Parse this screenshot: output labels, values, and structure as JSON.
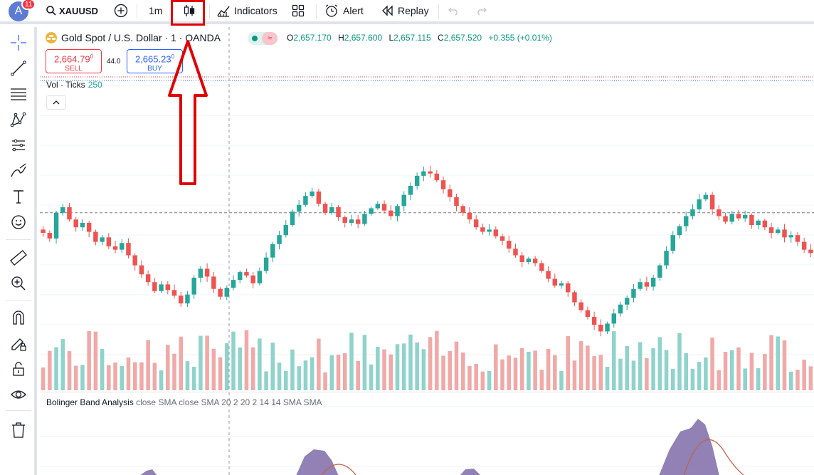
{
  "toolbar": {
    "notification_count": "11",
    "avatar_letter": "A",
    "symbol": "XAUUSD",
    "interval": "1m",
    "indicators_label": "Indicators",
    "alert_label": "Alert",
    "replay_label": "Replay"
  },
  "chart": {
    "title": "Gold Spot / U.S. Dollar · 1 · OANDA",
    "ohlc": {
      "open_label": "O",
      "open": "2,657.170",
      "high_label": "H",
      "high": "2,657.600",
      "low_label": "L",
      "low": "2,657.115",
      "close_label": "C",
      "close": "2,657.520",
      "change": "+0.355 (+0.01%)"
    },
    "sell_price": "2,664.79",
    "sell_price_sup": "0",
    "sell_label": "SELL",
    "spread": "44.0",
    "buy_price": "2,665.23",
    "buy_price_sup": "0",
    "buy_label": "BUY",
    "volume_label": "Vol · Ticks",
    "volume_value": "250",
    "colors": {
      "up": "#26a69a",
      "down": "#ef5350",
      "up_vol": "#8fd3cb",
      "down_vol": "#f0a9a7",
      "annotation": "#e00000"
    }
  },
  "chart_data": {
    "type": "candlestick",
    "close_series": [
      2655.8,
      2655.3,
      2657.6,
      2658.1,
      2657.0,
      2656.3,
      2656.7,
      2655.9,
      2655.0,
      2655.4,
      2654.6,
      2654.3,
      2654.9,
      2653.8,
      2652.9,
      2652.1,
      2651.4,
      2650.6,
      2651.2,
      2650.7,
      2650.2,
      2649.5,
      2650.3,
      2651.8,
      2652.6,
      2651.9,
      2650.8,
      2650.1,
      2650.9,
      2651.6,
      2652.3,
      2652.0,
      2651.3,
      2652.4,
      2653.6,
      2654.8,
      2655.6,
      2656.5,
      2657.7,
      2658.3,
      2659.1,
      2659.5,
      2658.4,
      2657.6,
      2658.1,
      2657.2,
      2656.7,
      2657.0,
      2656.6,
      2657.5,
      2658.0,
      2658.4,
      2657.8,
      2657.3,
      2658.2,
      2659.2,
      2660.0,
      2660.9,
      2661.3,
      2661.1,
      2660.5,
      2659.7,
      2659.0,
      2658.2,
      2657.6,
      2657.0,
      2656.3,
      2655.9,
      2656.1,
      2655.5,
      2655.1,
      2654.4,
      2653.8,
      2653.2,
      2653.5,
      2653.1,
      2652.4,
      2651.7,
      2651.1,
      2651.3,
      2650.5,
      2649.6,
      2648.9,
      2648.3,
      2647.6,
      2647.0,
      2647.7,
      2648.6,
      2649.4,
      2650.0,
      2650.8,
      2651.4,
      2651.0,
      2651.8,
      2652.9,
      2654.2,
      2655.6,
      2656.4,
      2657.3,
      2657.9,
      2658.8,
      2659.2,
      2657.9,
      2657.3,
      2656.8,
      2657.5,
      2657.1,
      2657.4,
      2656.5,
      2656.9,
      2656.3,
      2655.8,
      2656.1,
      2655.4,
      2655.6,
      2655.0,
      2654.3,
      2654.0
    ]
  },
  "oscillator": {
    "name": "Bolinger Band Analysis",
    "params": "close SMA close SMA 20 2 20 2 14 14 SMA SMA"
  }
}
